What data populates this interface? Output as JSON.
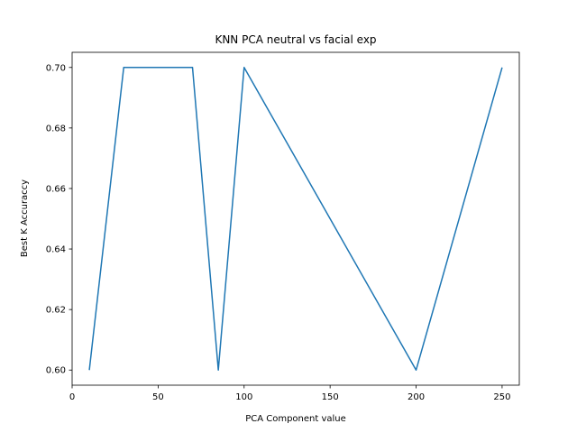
{
  "chart_data": {
    "type": "line",
    "title": "KNN PCA neutral vs facial exp",
    "xlabel": "PCA Component value",
    "ylabel": "Best K Accuraccy",
    "xlim": [
      0,
      260
    ],
    "ylim": [
      0.595,
      0.705
    ],
    "xticks": [
      0,
      50,
      100,
      150,
      200,
      250
    ],
    "xtick_labels": [
      "0",
      "50",
      "100",
      "150",
      "200",
      "250"
    ],
    "yticks": [
      0.6,
      0.62,
      0.64,
      0.66,
      0.68,
      0.7
    ],
    "ytick_labels": [
      "0.60",
      "0.62",
      "0.64",
      "0.66",
      "0.68",
      "0.70"
    ],
    "grid": false,
    "series": [
      {
        "color": "#1f77b4",
        "x": [
          10,
          30,
          50,
          70,
          85,
          100,
          200,
          250
        ],
        "y": [
          0.6,
          0.7,
          0.7,
          0.7,
          0.6,
          0.7,
          0.6,
          0.7
        ]
      }
    ]
  }
}
